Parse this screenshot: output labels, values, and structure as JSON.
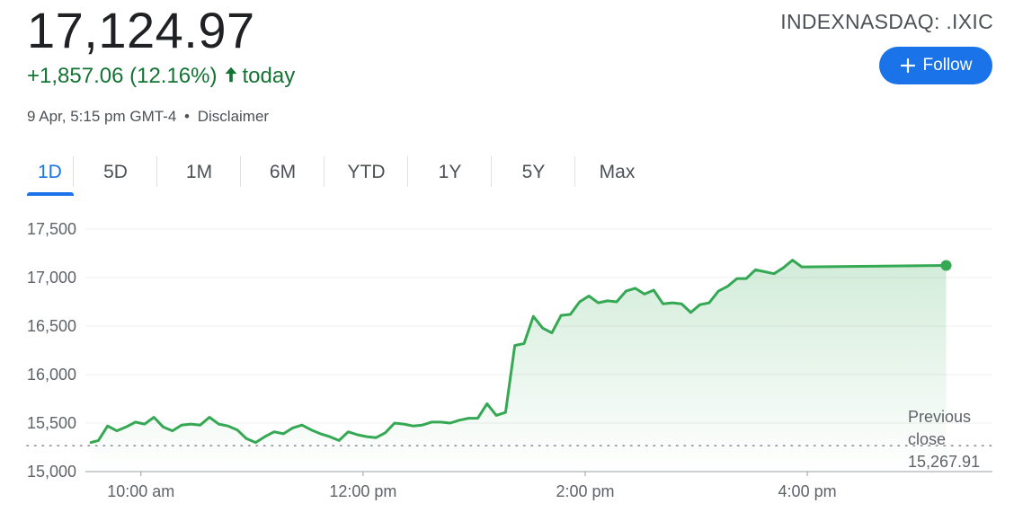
{
  "quote": {
    "price": "17,124.97",
    "change": "+1,857.06 (12.16%)",
    "change_period": "today",
    "timestamp": "9 Apr, 5:15 pm GMT-4",
    "separator": "•",
    "disclaimer": "Disclaimer",
    "ticker": "INDEXNASDAQ: .IXIC",
    "follow_label": "Follow",
    "direction": "up"
  },
  "tabs": [
    {
      "label": "1D",
      "active": true
    },
    {
      "label": "5D",
      "active": false
    },
    {
      "label": "1M",
      "active": false
    },
    {
      "label": "6M",
      "active": false
    },
    {
      "label": "YTD",
      "active": false
    },
    {
      "label": "1Y",
      "active": false
    },
    {
      "label": "5Y",
      "active": false
    },
    {
      "label": "Max",
      "active": false
    }
  ],
  "previous_close": {
    "label_line1": "Previous",
    "label_line2": "close",
    "value_label": "15,267.91",
    "value": 15267.91
  },
  "colors": {
    "up": "#137333",
    "line": "#34a853",
    "accent": "#1a73e8",
    "grid": "#efefef",
    "text": "#202124",
    "muted": "#5f6368"
  },
  "chart_data": {
    "type": "line",
    "title": "",
    "xlabel": "",
    "ylabel": "",
    "ylim": [
      15000,
      17500
    ],
    "y_ticks": [
      15000,
      15500,
      16000,
      16500,
      17000,
      17500
    ],
    "y_tick_labels": [
      "15,000",
      "15,500",
      "16,000",
      "16,500",
      "17,000",
      "17,500"
    ],
    "xlim": [
      "09:30",
      "17:40"
    ],
    "x_ticks": [
      "10:00",
      "12:00",
      "14:00",
      "16:00"
    ],
    "x_tick_labels": [
      "10:00 am",
      "12:00 pm",
      "2:00 pm",
      "4:00 pm"
    ],
    "grid": true,
    "last_marker": true,
    "series": [
      {
        "x": [
          "09:33",
          "09:37",
          "09:42",
          "09:47",
          "09:52",
          "09:57",
          "10:02",
          "10:07",
          "10:12",
          "10:17",
          "10:22",
          "10:27",
          "10:32",
          "10:37",
          "10:42",
          "10:47",
          "10:52",
          "10:57",
          "11:02",
          "11:07",
          "11:12",
          "11:17",
          "11:22",
          "11:27",
          "11:32",
          "11:37",
          "11:42",
          "11:47",
          "11:52",
          "11:57",
          "12:02",
          "12:07",
          "12:12",
          "12:17",
          "12:22",
          "12:27",
          "12:32",
          "12:37",
          "12:42",
          "12:47",
          "12:52",
          "12:57",
          "13:02",
          "13:07",
          "13:12",
          "13:17",
          "13:22",
          "13:27",
          "13:32",
          "13:37",
          "13:42",
          "13:47",
          "13:52",
          "13:57",
          "14:02",
          "14:07",
          "14:12",
          "14:17",
          "14:22",
          "14:27",
          "14:32",
          "14:37",
          "14:42",
          "14:47",
          "14:52",
          "14:57",
          "15:02",
          "15:07",
          "15:12",
          "15:17",
          "15:22",
          "15:27",
          "15:32",
          "15:37",
          "15:42",
          "15:47",
          "15:52",
          "15:57",
          "16:00",
          "17:15"
        ],
        "y": [
          15300,
          15320,
          15470,
          15420,
          15460,
          15510,
          15490,
          15560,
          15460,
          15420,
          15480,
          15490,
          15480,
          15560,
          15490,
          15470,
          15430,
          15340,
          15300,
          15360,
          15410,
          15390,
          15450,
          15480,
          15430,
          15390,
          15360,
          15320,
          15410,
          15380,
          15360,
          15350,
          15400,
          15500,
          15490,
          15470,
          15480,
          15510,
          15510,
          15500,
          15530,
          15550,
          15550,
          15700,
          15580,
          15610,
          16300,
          16320,
          16600,
          16480,
          16430,
          16610,
          16620,
          16750,
          16810,
          16740,
          16760,
          16750,
          16860,
          16890,
          16830,
          16870,
          16730,
          16740,
          16730,
          16640,
          16720,
          16740,
          16860,
          16910,
          16990,
          16990,
          17080,
          17060,
          17040,
          17100,
          17180,
          17110,
          17110,
          17124.97
        ]
      }
    ]
  }
}
